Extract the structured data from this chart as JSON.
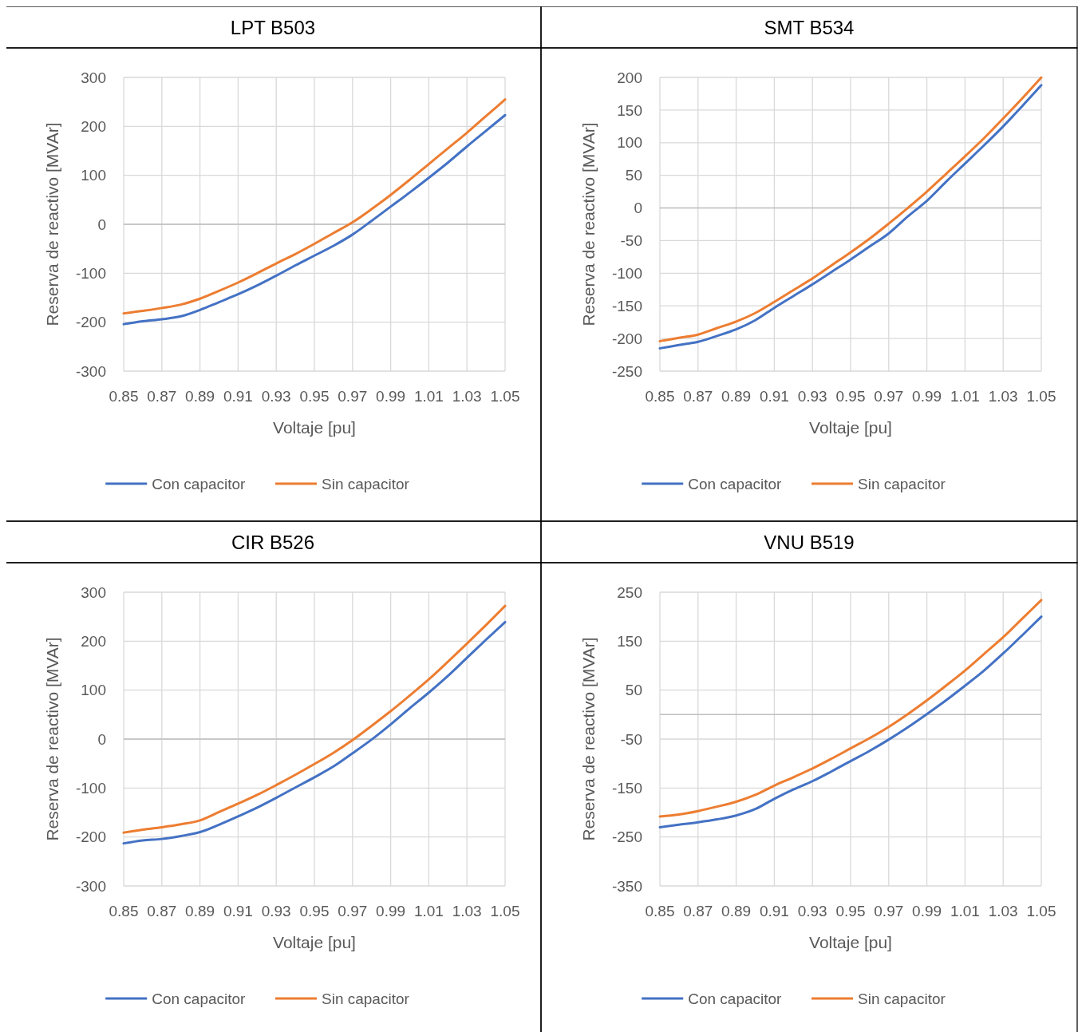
{
  "chart_data": [
    {
      "type": "line",
      "title": "LPT B503",
      "xlabel": "Voltaje [pu]",
      "ylabel": "Reserva de reactivo [MVAr]",
      "x": [
        0.85,
        0.86,
        0.87,
        0.88,
        0.89,
        0.9,
        0.91,
        0.92,
        0.93,
        0.94,
        0.95,
        0.96,
        0.97,
        0.98,
        0.99,
        1.0,
        1.01,
        1.02,
        1.03,
        1.04,
        1.05
      ],
      "xlim": [
        0.85,
        1.05
      ],
      "xticks": [
        0.85,
        0.87,
        0.89,
        0.91,
        0.93,
        0.95,
        0.97,
        0.99,
        1.01,
        1.03,
        1.05
      ],
      "ylim": [
        -300,
        300
      ],
      "yticks": [
        -300,
        -200,
        -100,
        0,
        100,
        200,
        300
      ],
      "grid": true,
      "legend": "bottom",
      "series": [
        {
          "name": "Con capacitor",
          "color": "#4472c4",
          "values": [
            -204,
            -198,
            -194,
            -188,
            -175,
            -159,
            -143,
            -125,
            -105,
            -84,
            -64,
            -44,
            -21,
            7,
            36,
            65,
            95,
            126,
            159,
            191,
            223
          ]
        },
        {
          "name": "Sin capacitor",
          "color": "#ed7d31",
          "values": [
            -182,
            -177,
            -171,
            -164,
            -152,
            -136,
            -119,
            -100,
            -80,
            -61,
            -40,
            -18,
            4,
            31,
            60,
            91,
            123,
            155,
            187,
            221,
            255
          ]
        }
      ]
    },
    {
      "type": "line",
      "title": "SMT B534",
      "xlabel": "Voltaje [pu]",
      "ylabel": "Reserva de reactivo [MVAr]",
      "x": [
        0.85,
        0.86,
        0.87,
        0.88,
        0.89,
        0.9,
        0.91,
        0.92,
        0.93,
        0.94,
        0.95,
        0.96,
        0.97,
        0.98,
        0.99,
        1.0,
        1.01,
        1.02,
        1.03,
        1.04,
        1.05
      ],
      "xlim": [
        0.85,
        1.05
      ],
      "xticks": [
        0.85,
        0.87,
        0.89,
        0.91,
        0.93,
        0.95,
        0.97,
        0.99,
        1.01,
        1.03,
        1.05
      ],
      "ylim": [
        -250,
        200
      ],
      "yticks": [
        -250,
        -200,
        -150,
        -100,
        -50,
        0,
        50,
        100,
        150,
        200
      ],
      "grid": true,
      "legend": "bottom",
      "series": [
        {
          "name": "Con capacitor",
          "color": "#4472c4",
          "values": [
            -215,
            -210,
            -205,
            -196,
            -186,
            -172,
            -153,
            -135,
            -117,
            -98,
            -79,
            -59,
            -39,
            -13,
            11,
            40,
            68,
            96,
            125,
            156,
            188
          ]
        },
        {
          "name": "Sin capacitor",
          "color": "#ed7d31",
          "values": [
            -204,
            -199,
            -194,
            -184,
            -174,
            -161,
            -144,
            -126,
            -108,
            -88,
            -68,
            -47,
            -24,
            0,
            25,
            52,
            79,
            107,
            137,
            168,
            200
          ]
        }
      ]
    },
    {
      "type": "line",
      "title": "CIR B526",
      "xlabel": "Voltaje [pu]",
      "ylabel": "Reserva de reactivo [MVAr]",
      "x": [
        0.85,
        0.86,
        0.87,
        0.88,
        0.89,
        0.9,
        0.91,
        0.92,
        0.93,
        0.94,
        0.95,
        0.96,
        0.97,
        0.98,
        0.99,
        1.0,
        1.01,
        1.02,
        1.03,
        1.04,
        1.05
      ],
      "xlim": [
        0.85,
        1.05
      ],
      "xticks": [
        0.85,
        0.87,
        0.89,
        0.91,
        0.93,
        0.95,
        0.97,
        0.99,
        1.01,
        1.03,
        1.05
      ],
      "ylim": [
        -300,
        300
      ],
      "yticks": [
        -300,
        -200,
        -100,
        0,
        100,
        200,
        300
      ],
      "grid": true,
      "legend": "bottom",
      "series": [
        {
          "name": "Con capacitor",
          "color": "#4472c4",
          "values": [
            -213,
            -207,
            -204,
            -198,
            -190,
            -175,
            -158,
            -140,
            -120,
            -99,
            -78,
            -56,
            -29,
            -1,
            30,
            63,
            95,
            129,
            166,
            203,
            239
          ]
        },
        {
          "name": "Sin capacitor",
          "color": "#ed7d31",
          "values": [
            -191,
            -185,
            -180,
            -174,
            -166,
            -149,
            -132,
            -114,
            -94,
            -73,
            -51,
            -28,
            -2,
            27,
            57,
            89,
            122,
            158,
            195,
            233,
            272
          ]
        }
      ]
    },
    {
      "type": "line",
      "title": "VNU B519",
      "xlabel": "Voltaje [pu]",
      "ylabel": "Reserva de reactivo [MVAr]",
      "x": [
        0.85,
        0.86,
        0.87,
        0.88,
        0.89,
        0.9,
        0.91,
        0.92,
        0.93,
        0.94,
        0.95,
        0.96,
        0.97,
        0.98,
        0.99,
        1.0,
        1.01,
        1.02,
        1.03,
        1.04,
        1.05
      ],
      "xlim": [
        0.85,
        1.05
      ],
      "xticks": [
        0.85,
        0.87,
        0.89,
        0.91,
        0.93,
        0.95,
        0.97,
        0.99,
        1.01,
        1.03,
        1.05
      ],
      "ylim": [
        -350,
        250
      ],
      "yticks": [
        -350,
        -250,
        -150,
        -50,
        50,
        150,
        250
      ],
      "grid": true,
      "legend": "bottom",
      "series": [
        {
          "name": "Con capacitor",
          "color": "#4472c4",
          "values": [
            -230,
            -225,
            -220,
            -214,
            -206,
            -193,
            -172,
            -153,
            -136,
            -116,
            -95,
            -74,
            -51,
            -26,
            1,
            29,
            59,
            90,
            125,
            162,
            200
          ]
        },
        {
          "name": "Sin capacitor",
          "color": "#ed7d31",
          "values": [
            -208,
            -204,
            -197,
            -188,
            -178,
            -164,
            -145,
            -128,
            -110,
            -90,
            -69,
            -48,
            -25,
            1,
            29,
            59,
            90,
            124,
            158,
            196,
            234
          ]
        }
      ]
    }
  ]
}
